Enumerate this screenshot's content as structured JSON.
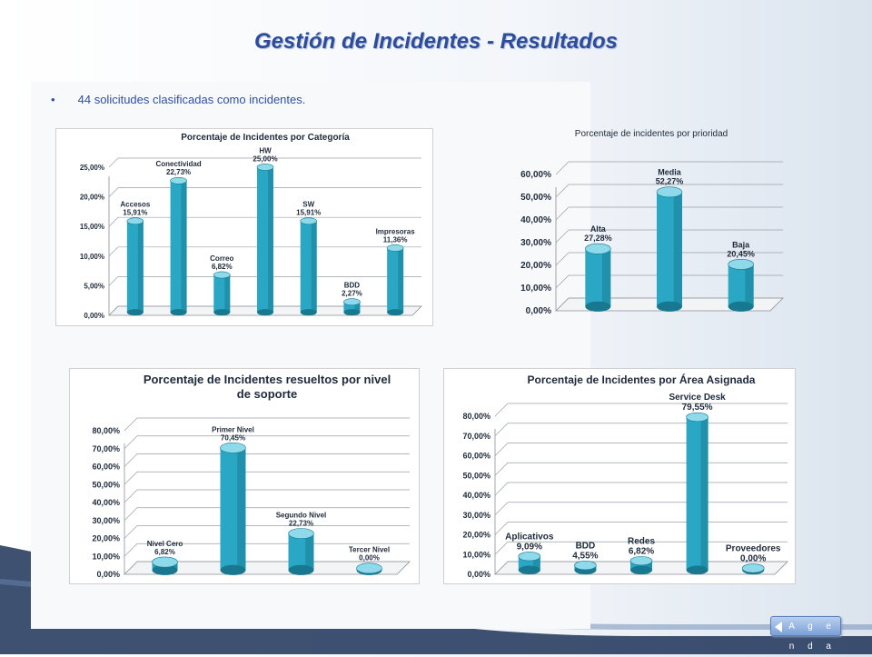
{
  "slide": {
    "title": "Gestión de Incidentes - Resultados",
    "bullet": "44 solicitudes clasificadas como incidentes.",
    "nav_button": "A g e n d a"
  },
  "colors": {
    "title": "#2c4c9c",
    "bar": "#2aa7c4",
    "bar_dark": "#17788f",
    "bar_light": "#8fdaea"
  },
  "chart_data": [
    {
      "type": "bar",
      "title": "Porcentaje de Incidentes por Categoría",
      "categories": [
        "Accesos",
        "Conectividad",
        "Correo",
        "HW",
        "SW",
        "BDD",
        "Impresoras"
      ],
      "values": [
        15.91,
        22.73,
        6.82,
        25.0,
        15.91,
        2.27,
        11.36
      ],
      "value_labels": [
        "15,91%",
        "22,73%",
        "6,82%",
        "25,00%",
        "15,91%",
        "2,27%",
        "11,36%"
      ],
      "ylim": [
        0,
        25
      ],
      "yticks": [
        "0,00%",
        "5,00%",
        "10,00%",
        "15,00%",
        "20,00%",
        "25,00%"
      ],
      "grid": true
    },
    {
      "type": "bar",
      "title": "Porcentaje de incidentes por prioridad",
      "categories": [
        "Alta",
        "Media",
        "Baja"
      ],
      "values": [
        27.28,
        52.27,
        20.45
      ],
      "value_labels": [
        "27,28%",
        "52,27%",
        "20,45%"
      ],
      "ylim": [
        0,
        60
      ],
      "yticks": [
        "0,00%",
        "10,00%",
        "20,00%",
        "30,00%",
        "40,00%",
        "50,00%",
        "60,00%"
      ],
      "grid": true
    },
    {
      "type": "bar",
      "title": "Porcentaje de Incidentes resueltos por nivel de soporte",
      "title_lines": [
        "Porcentaje de Incidentes resueltos por nivel",
        "de soporte"
      ],
      "categories": [
        "Nivel Cero",
        "Primer Nivel",
        "Segundo Nivel",
        "Tercer Nivel"
      ],
      "values": [
        6.82,
        70.45,
        22.73,
        0.0
      ],
      "value_labels": [
        "6,82%",
        "70,45%",
        "22,73%",
        "0,00%"
      ],
      "ylim": [
        0,
        80
      ],
      "yticks": [
        "0,00%",
        "10,00%",
        "20,00%",
        "30,00%",
        "40,00%",
        "50,00%",
        "60,00%",
        "70,00%",
        "80,00%"
      ],
      "grid": true
    },
    {
      "type": "bar",
      "title": "Porcentaje de Incidentes por Área Asignada",
      "categories": [
        "Aplicativos",
        "BDD",
        "Redes",
        "Service Desk",
        "Proveedores"
      ],
      "values": [
        9.09,
        4.55,
        6.82,
        79.55,
        0.0
      ],
      "value_labels": [
        "9,09%",
        "4,55%",
        "6,82%",
        "79,55%",
        "0,00%"
      ],
      "ylim": [
        0,
        80
      ],
      "yticks": [
        "0,00%",
        "10,00%",
        "20,00%",
        "30,00%",
        "40,00%",
        "50,00%",
        "60,00%",
        "70,00%",
        "80,00%"
      ],
      "grid": true
    }
  ]
}
